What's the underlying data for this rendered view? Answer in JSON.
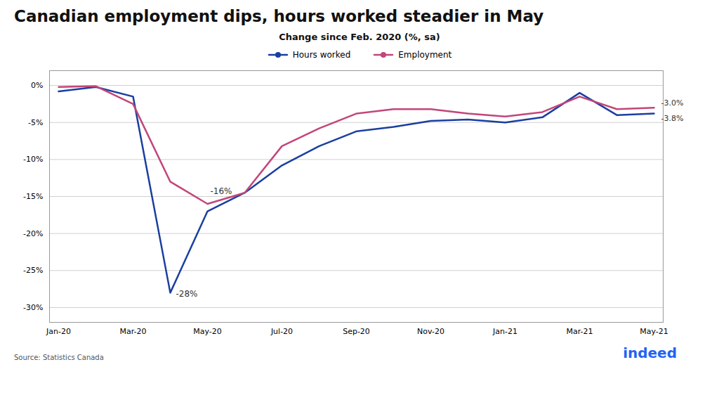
{
  "chart_data": {
    "type": "line",
    "title": "Canadian employment dips, hours worked steadier in May",
    "subtitle": "Change since Feb. 2020 (%, sa)",
    "source": "Source: Statistics Canada",
    "logo": "indeed",
    "logo_color": "#2164f3",
    "categories": [
      "Jan-20",
      null,
      "Mar-20",
      null,
      "May-20",
      null,
      "Jul-20",
      null,
      "Sep-20",
      null,
      "Nov-20",
      null,
      "Jan-21",
      null,
      "Mar-21",
      null,
      "May-21"
    ],
    "series": [
      {
        "name": "Hours worked",
        "color": "#1b3fa0",
        "values": [
          -0.8,
          -0.2,
          -1.5,
          -28.0,
          -17.0,
          -14.5,
          -10.8,
          -8.2,
          -6.2,
          -5.6,
          -4.8,
          -4.6,
          -5.0,
          -4.3,
          -1.0,
          -4.0,
          -3.8
        ],
        "end_label": "-3.8%"
      },
      {
        "name": "Employment",
        "color": "#c2467a",
        "values": [
          -0.2,
          -0.1,
          -2.5,
          -13.0,
          -16.0,
          -14.5,
          -8.2,
          -5.8,
          -3.8,
          -3.2,
          -3.2,
          -3.8,
          -4.2,
          -3.6,
          -1.5,
          -3.2,
          -3.0
        ],
        "end_label": "-3.0%"
      }
    ],
    "ylim": [
      -32,
      2
    ],
    "yticks": [
      {
        "value": 0,
        "label": "0%"
      },
      {
        "value": -5,
        "label": "-5%"
      },
      {
        "value": -10,
        "label": "-10%"
      },
      {
        "value": -15,
        "label": "-15%"
      },
      {
        "value": -20,
        "label": "-20%"
      },
      {
        "value": -25,
        "label": "-25%"
      },
      {
        "value": -30,
        "label": "-30%"
      }
    ],
    "grid": true,
    "legend": "top",
    "annotations": [
      {
        "text": "-28%",
        "series": "Hours worked"
      },
      {
        "text": "-16%",
        "series": "Employment"
      }
    ]
  }
}
